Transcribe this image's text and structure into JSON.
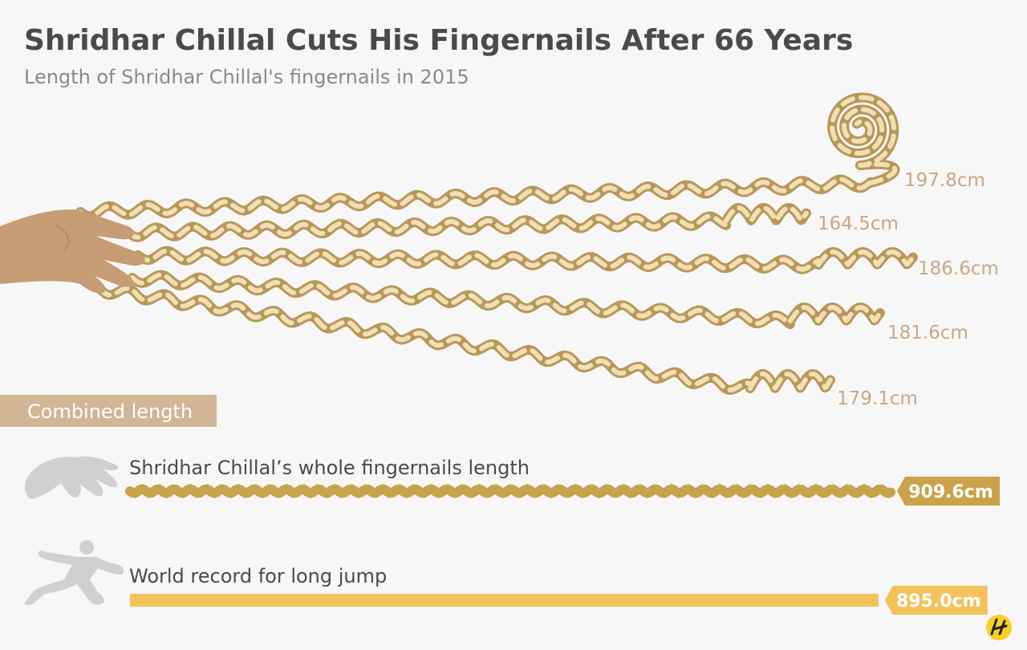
{
  "chart_data": {
    "type": "bar",
    "title": "Shridhar Chillal Cuts His Fingernails After 66 Years",
    "subtitle": "Length of Shridhar Chillal's fingernails in 2015",
    "unit": "cm",
    "nails": [
      {
        "label": "197.8cm",
        "value": 197.8
      },
      {
        "label": "164.5cm",
        "value": 164.5
      },
      {
        "label": "186.6cm",
        "value": 186.6
      },
      {
        "label": "181.6cm",
        "value": 181.6
      },
      {
        "label": "179.1cm",
        "value": 179.1
      }
    ],
    "combined": {
      "heading": "Combined length",
      "bars": [
        {
          "name": "Shridhar Chillal’s whole fingernails length",
          "value": 909.6,
          "label": "909.6cm",
          "color": "#c9a24a"
        },
        {
          "name": "World record for long jump",
          "value": 895.0,
          "label": "895.0cm",
          "color": "#f3c25a"
        }
      ]
    }
  },
  "colors": {
    "nail_dark": "#b8975a",
    "nail_light": "#f1dfb3",
    "hand": "#c69c74",
    "section_bg": "#d2b595",
    "silhouette": "#d0d0d0",
    "logo_bg": "#f7d020"
  },
  "icons": {
    "hand": "hand-icon",
    "silhouette_hand": "hand-silhouette-icon",
    "jumper": "long-jumper-icon",
    "logo": "statista-logo-icon"
  }
}
